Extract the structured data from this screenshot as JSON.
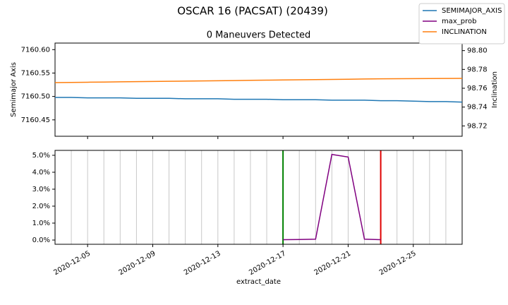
{
  "title": "OSCAR 16 (PACSAT) (20439)",
  "legend": "upper right",
  "chart_data": [
    {
      "type": "line",
      "title": "0 Maneuvers Detected",
      "ylabel": "Semimajor Axis",
      "y2label": "Inclination",
      "x": [
        "2020-12-03",
        "2020-12-04",
        "2020-12-05",
        "2020-12-06",
        "2020-12-07",
        "2020-12-08",
        "2020-12-09",
        "2020-12-10",
        "2020-12-11",
        "2020-12-12",
        "2020-12-13",
        "2020-12-14",
        "2020-12-15",
        "2020-12-16",
        "2020-12-17",
        "2020-12-18",
        "2020-12-19",
        "2020-12-20",
        "2020-12-21",
        "2020-12-22",
        "2020-12-23",
        "2020-12-24",
        "2020-12-25",
        "2020-12-26",
        "2020-12-27",
        "2020-12-28"
      ],
      "series": [
        {
          "name": "SEMIMAJOR_AXIS",
          "color": "#1f77b4",
          "values": [
            7160.498,
            7160.498,
            7160.497,
            7160.497,
            7160.497,
            7160.496,
            7160.496,
            7160.496,
            7160.495,
            7160.495,
            7160.495,
            7160.494,
            7160.494,
            7160.494,
            7160.493,
            7160.493,
            7160.493,
            7160.492,
            7160.492,
            7160.492,
            7160.491,
            7160.491,
            7160.49,
            7160.489,
            7160.489,
            7160.488
          ]
        },
        {
          "name": "INCLINATION",
          "color": "#ff7f0e",
          "axis": "y2",
          "values": [
            98.766,
            98.7662,
            98.7664,
            98.7666,
            98.7668,
            98.767,
            98.7672,
            98.7674,
            98.7676,
            98.7678,
            98.768,
            98.7682,
            98.7684,
            98.7686,
            98.7688,
            98.769,
            98.7692,
            98.7694,
            98.7696,
            98.7698,
            98.77,
            98.7701,
            98.7702,
            98.7703,
            98.7704,
            98.7705
          ]
        }
      ],
      "xlim": [
        "2020-12-03",
        "2020-12-28"
      ],
      "xticks": [
        "2020-12-05",
        "2020-12-09",
        "2020-12-13",
        "2020-12-17",
        "2020-12-21",
        "2020-12-25"
      ],
      "ylim": [
        7160.415,
        7160.614
      ],
      "yticks": [
        7160.45,
        {
          "value": 7160.5,
          "label": "7160.50"
        },
        7160.55,
        {
          "value": 7160.6,
          "label": "7160.60"
        }
      ],
      "y2lim": [
        98.709,
        98.808
      ],
      "y2ticks": [
        98.72,
        98.74,
        98.76,
        98.78,
        {
          "value": 98.8,
          "label": "98.80"
        }
      ]
    },
    {
      "type": "line",
      "xlabel": "extract_date",
      "x": [
        "2020-12-17",
        "2020-12-18",
        "2020-12-19",
        "2020-12-20",
        "2020-12-21",
        "2020-12-22",
        "2020-12-23"
      ],
      "series": [
        {
          "name": "max_prob",
          "color": "#800080",
          "values": [
            0.02,
            0.03,
            0.05,
            5.05,
            4.9,
            0.05,
            0.02
          ]
        }
      ],
      "vlines": [
        {
          "color": "#c8c8c8",
          "x": [
            "2020-12-03",
            "2020-12-04",
            "2020-12-05",
            "2020-12-06",
            "2020-12-07",
            "2020-12-08",
            "2020-12-09",
            "2020-12-10",
            "2020-12-11",
            "2020-12-12",
            "2020-12-13",
            "2020-12-14",
            "2020-12-15",
            "2020-12-16",
            "2020-12-18",
            "2020-12-19",
            "2020-12-20",
            "2020-12-21",
            "2020-12-22",
            "2020-12-24",
            "2020-12-25",
            "2020-12-26",
            "2020-12-27",
            "2020-12-28"
          ]
        },
        {
          "color": "#008000",
          "x": [
            "2020-12-17"
          ]
        },
        {
          "color": "#e00000",
          "x": [
            "2020-12-23"
          ]
        }
      ],
      "xlim": [
        "2020-12-03",
        "2020-12-28"
      ],
      "xticks": [
        "2020-12-05",
        "2020-12-09",
        "2020-12-13",
        "2020-12-17",
        "2020-12-21",
        "2020-12-25"
      ],
      "ylim": [
        -0.25,
        5.29
      ],
      "yticks": [
        {
          "value": 0,
          "label": "0.0%"
        },
        {
          "value": 1,
          "label": "1.0%"
        },
        {
          "value": 2,
          "label": "2.0%"
        },
        {
          "value": 3,
          "label": "3.0%"
        },
        {
          "value": 4,
          "label": "4.0%"
        },
        {
          "value": 5,
          "label": "5.0%"
        }
      ]
    }
  ]
}
